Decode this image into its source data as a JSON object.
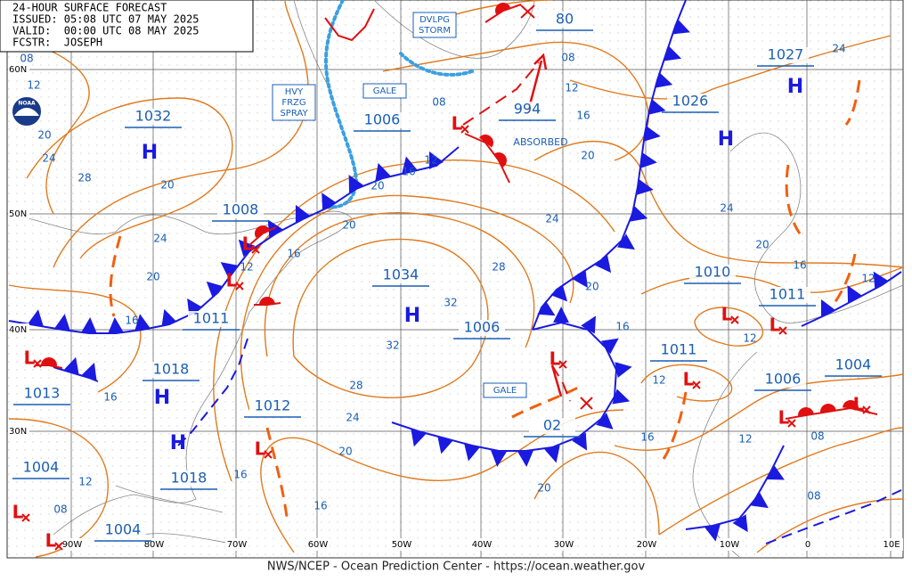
{
  "header": {
    "title": "24-HOUR SURFACE FORECAST",
    "issued": "ISSUED: 05:08 UTC 07 MAY 2025",
    "valid": "VALID:  00:00 UTC 08 MAY 2025",
    "forecaster": "FCSTR:  JOSEPH"
  },
  "footer": "NWS/NCEP - Ocean Prediction Center - https://ocean.weather.gov",
  "logo": "NOAA",
  "latitude_labels": [
    "60N",
    "50N",
    "40N",
    "30N"
  ],
  "longitude_labels": [
    "90W",
    "80W",
    "70W",
    "60W",
    "50W",
    "40W",
    "30W",
    "20W",
    "10W",
    "0",
    "10E"
  ],
  "high_centers": [
    "H",
    "H",
    "H",
    "H",
    "H",
    "H"
  ],
  "low_centers": [
    "L",
    "L",
    "L",
    "L",
    "L",
    "L",
    "L",
    "L",
    "L",
    "L",
    "L",
    "L",
    "L"
  ],
  "pressure_labels": [
    1032,
    1018,
    1018,
    1034,
    1026,
    1027,
    1008,
    1011,
    1006,
    994,
    1006,
    1012,
    1010,
    1011,
    1011,
    1006,
    1004,
    1013,
    1004,
    1004,
    "80",
    "02"
  ],
  "isobar_labels": [
    "08",
    12,
    20,
    24,
    28,
    20,
    24,
    20,
    16,
    16,
    12,
    "08",
    16,
    16,
    20,
    24,
    28,
    32,
    32,
    28,
    24,
    20,
    16,
    12,
    "08",
    "08",
    12,
    16,
    20,
    20,
    16,
    12,
    20,
    16,
    12,
    16,
    20,
    12,
    "08",
    "08",
    12,
    16,
    20,
    24,
    24,
    12
  ],
  "warnings": [
    [
      "GALE"
    ],
    [
      "HVY",
      "FRZG",
      "SPRAY"
    ],
    [
      "DVLPG",
      "STORM"
    ],
    [
      "GALE"
    ]
  ],
  "annotations": [
    "ABSORBED"
  ]
}
